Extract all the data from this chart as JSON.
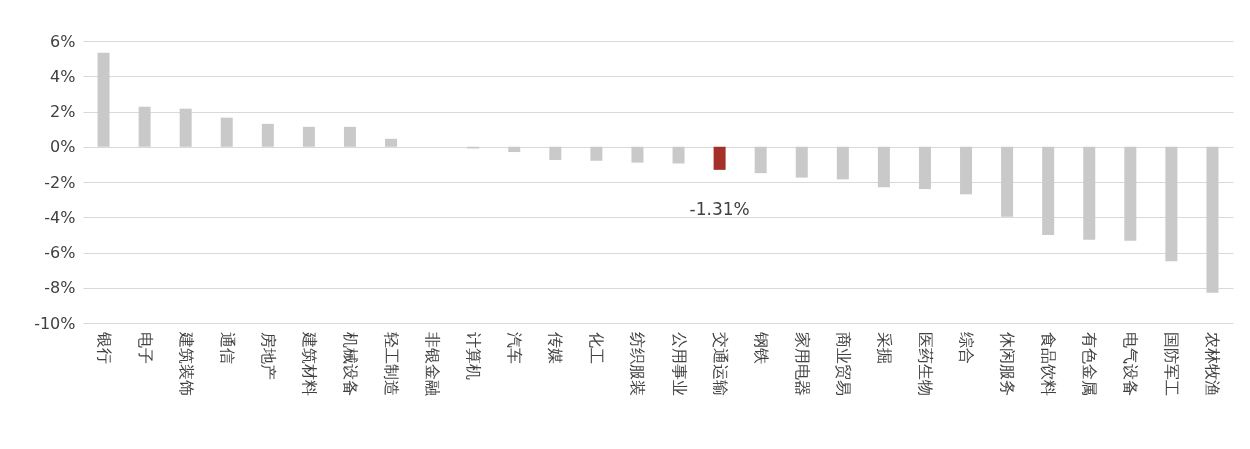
{
  "chart_data": {
    "type": "bar",
    "categories": [
      "银行",
      "电子",
      "建筑装饰",
      "通信",
      "房地产",
      "建筑材料",
      "机械设备",
      "轻工制造",
      "非银金融",
      "计算机",
      "汽车",
      "传媒",
      "化工",
      "纺织服装",
      "公用事业",
      "交通运输",
      "钢铁",
      "家用电器",
      "商业贸易",
      "采掘",
      "医药生物",
      "综合",
      "休闲服务",
      "食品饮料",
      "有色金属",
      "电气设备",
      "国防军工",
      "农林牧渔"
    ],
    "values": [
      5.33,
      2.27,
      2.16,
      1.65,
      1.3,
      1.13,
      1.13,
      0.45,
      null,
      -0.1,
      -0.3,
      -0.75,
      -0.8,
      -0.9,
      -0.95,
      -1.31,
      -1.5,
      -1.75,
      -1.85,
      -2.3,
      -2.4,
      -2.7,
      -3.97,
      -5.0,
      -5.27,
      -5.33,
      -6.5,
      -8.28
    ],
    "colors": [
      "#c9c9c9",
      "#c9c9c9",
      "#c9c9c9",
      "#c9c9c9",
      "#c9c9c9",
      "#c9c9c9",
      "#c9c9c9",
      "#c9c9c9",
      "#c9c9c9",
      "#c9c9c9",
      "#c9c9c9",
      "#c9c9c9",
      "#c9c9c9",
      "#c9c9c9",
      "#c9c9c9",
      "#a5302a",
      "#c9c9c9",
      "#c9c9c9",
      "#c9c9c9",
      "#c9c9c9",
      "#c9c9c9",
      "#c9c9c9",
      "#c9c9c9",
      "#c9c9c9",
      "#c9c9c9",
      "#c9c9c9",
      "#c9c9c9",
      "#c9c9c9"
    ],
    "value_labels": [
      null,
      null,
      null,
      null,
      null,
      null,
      null,
      null,
      null,
      null,
      null,
      null,
      null,
      null,
      null,
      "-1.31%",
      null,
      null,
      null,
      null,
      null,
      null,
      null,
      null,
      null,
      null,
      null,
      null
    ],
    "ylim": [
      -10,
      6
    ],
    "yticks": [
      {
        "value": -10,
        "label": "-10%"
      },
      {
        "value": -8,
        "label": "-8%"
      },
      {
        "value": -6,
        "label": "-6%"
      },
      {
        "value": -4,
        "label": "-4%"
      },
      {
        "value": -2,
        "label": "-2%"
      },
      {
        "value": 0,
        "label": "0%"
      },
      {
        "value": 2,
        "label": "2%"
      },
      {
        "value": 4,
        "label": "4%"
      },
      {
        "value": 6,
        "label": "6%"
      }
    ],
    "grid": "y"
  }
}
